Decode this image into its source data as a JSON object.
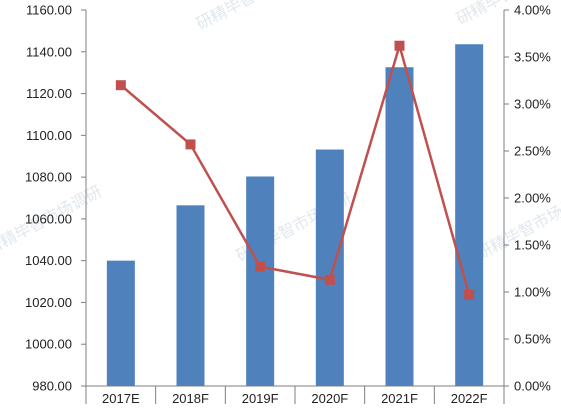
{
  "chart_data": {
    "type": "bar+line",
    "categories": [
      "2017E",
      "2018F",
      "2019F",
      "2020F",
      "2021F",
      "2022F"
    ],
    "bar_series": {
      "values": [
        1040,
        1066.5,
        1080.3,
        1093.2,
        1132.6,
        1143.6
      ],
      "color": "#4F81BD"
    },
    "line_series": {
      "values": [
        3.2,
        2.57,
        1.27,
        1.13,
        3.62,
        0.97
      ],
      "color": "#C0504D"
    },
    "left_axis": {
      "min": 980,
      "max": 1160,
      "step": 20,
      "decimals": 2
    },
    "right_axis": {
      "min": 0,
      "max": 4,
      "step": 0.5,
      "unit": "%"
    },
    "grid": false,
    "legend": "none",
    "title": "",
    "xlabel": "",
    "ylabel": ""
  },
  "watermark": {
    "text": "研精毕智市场调研",
    "color": "#c8d4e0"
  }
}
